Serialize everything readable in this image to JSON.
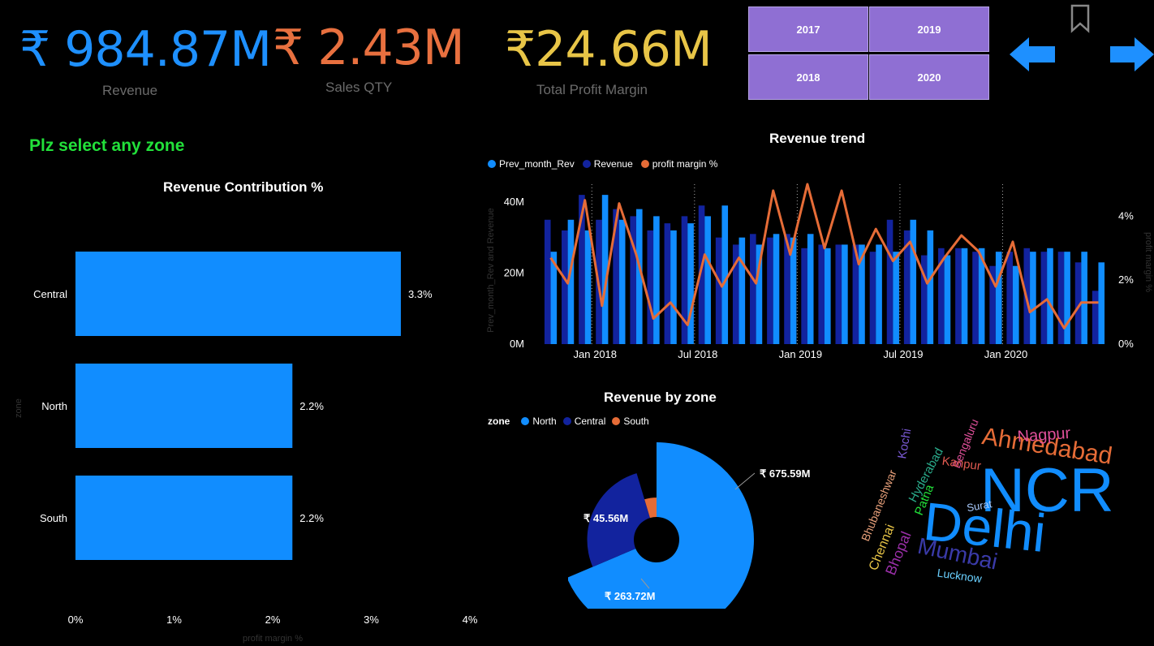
{
  "kpis": [
    {
      "value": "₹ 984.87M",
      "label": "Revenue",
      "color": "#1e90ff"
    },
    {
      "value": "₹ 2.43M",
      "label": "Sales QTY",
      "color": "#e8703f"
    },
    {
      "value": "₹24.66M",
      "label": "Total Profit Margin",
      "color": "#e8c547"
    }
  ],
  "years": [
    "2017",
    "2019",
    "2018",
    "2020"
  ],
  "prompt": "Plz select any zone",
  "colors": {
    "light_blue": "#118dff",
    "dark_blue": "#12239e",
    "orange": "#e66c37",
    "green": "#22e03a",
    "purple": "#8f6fd3"
  },
  "contribution": {
    "title": "Revenue Contribution %",
    "ylabel": "zone",
    "xlabel": "profit margin %",
    "ticks": [
      "0%",
      "1%",
      "2%",
      "3%",
      "4%"
    ]
  },
  "trend": {
    "title": "Revenue trend",
    "ylabel": "Prev_month_Rev and Revenue",
    "y2label": "profit margin %",
    "legend": [
      "Prev_month_Rev",
      "Revenue",
      "profit margin %"
    ],
    "yticks": [
      "0M",
      "20M",
      "40M"
    ],
    "y2ticks": [
      "0%",
      "2%",
      "4%"
    ],
    "xticks": [
      "Jan 2018",
      "Jul 2018",
      "Jan 2019",
      "Jul 2019",
      "Jan 2020"
    ]
  },
  "zone": {
    "title": "Revenue by zone",
    "legend_title": "zone",
    "legend": [
      "North",
      "Central",
      "South"
    ],
    "labels": [
      "₹ 675.59M",
      "₹ 263.72M",
      "₹ 45.56M"
    ]
  },
  "cities": [
    "NCR",
    "Delhi",
    "Ahmedabad",
    "Mumbai",
    "Nagpur",
    "Bengaluru",
    "Kanpur",
    "Hyderabad",
    "Kochi",
    "Bhubaneshwar",
    "Patna",
    "Surat",
    "Chennai",
    "Bhopal",
    "Lucknow"
  ],
  "chart_data": [
    {
      "type": "bar",
      "title": "Revenue Contribution %",
      "categories": [
        "Central",
        "North",
        "South"
      ],
      "values": [
        3.3,
        2.2,
        2.2
      ],
      "data_labels": [
        "3.3%",
        "2.2%",
        "2.2%"
      ],
      "xlabel": "profit margin %",
      "ylabel": "zone",
      "xlim": [
        0,
        4
      ]
    },
    {
      "type": "bar",
      "title": "Revenue trend",
      "x": [
        "2017-10",
        "2017-11",
        "2017-12",
        "2018-01",
        "2018-02",
        "2018-03",
        "2018-04",
        "2018-05",
        "2018-06",
        "2018-07",
        "2018-08",
        "2018-09",
        "2018-10",
        "2018-11",
        "2018-12",
        "2019-01",
        "2019-02",
        "2019-03",
        "2019-04",
        "2019-05",
        "2019-06",
        "2019-07",
        "2019-08",
        "2019-09",
        "2019-10",
        "2019-11",
        "2019-12",
        "2020-01",
        "2020-02",
        "2020-03",
        "2020-04",
        "2020-05",
        "2020-06"
      ],
      "series": [
        {
          "name": "Prev_month_Rev",
          "values": [
            26,
            35,
            32,
            42,
            35,
            38,
            36,
            32,
            34,
            36,
            39,
            30,
            28,
            31,
            30,
            31,
            27,
            28,
            28,
            28,
            26,
            35,
            32,
            25,
            27,
            27,
            26,
            22,
            26,
            27,
            26,
            26,
            23
          ]
        },
        {
          "name": "Revenue",
          "values": [
            35,
            32,
            42,
            35,
            38,
            36,
            32,
            34,
            36,
            39,
            30,
            28,
            31,
            30,
            31,
            27,
            28,
            28,
            28,
            26,
            35,
            32,
            25,
            27,
            27,
            26,
            22,
            26,
            27,
            26,
            26,
            23,
            15
          ]
        },
        {
          "name": "profit margin %",
          "values": [
            2.7,
            1.9,
            4.5,
            1.2,
            4.4,
            2.8,
            0.8,
            1.3,
            0.6,
            2.8,
            1.8,
            2.7,
            1.9,
            4.8,
            2.8,
            5.0,
            3.0,
            4.8,
            2.5,
            3.6,
            2.6,
            3.2,
            1.9,
            2.7,
            3.4,
            2.9,
            1.8,
            3.2,
            1.0,
            1.4,
            0.5,
            1.3,
            1.3
          ]
        }
      ],
      "ylim": [
        0,
        45
      ],
      "y2lim": [
        0,
        5
      ],
      "yticks": [
        "0M",
        "20M",
        "40M"
      ],
      "y2ticks": [
        "0%",
        "2%",
        "4%"
      ]
    },
    {
      "type": "pie",
      "title": "Revenue by zone",
      "categories": [
        "North",
        "Central",
        "South"
      ],
      "values": [
        675.59,
        263.72,
        45.56
      ],
      "data_labels": [
        "₹ 675.59M",
        "₹ 263.72M",
        "₹ 45.56M"
      ]
    }
  ]
}
